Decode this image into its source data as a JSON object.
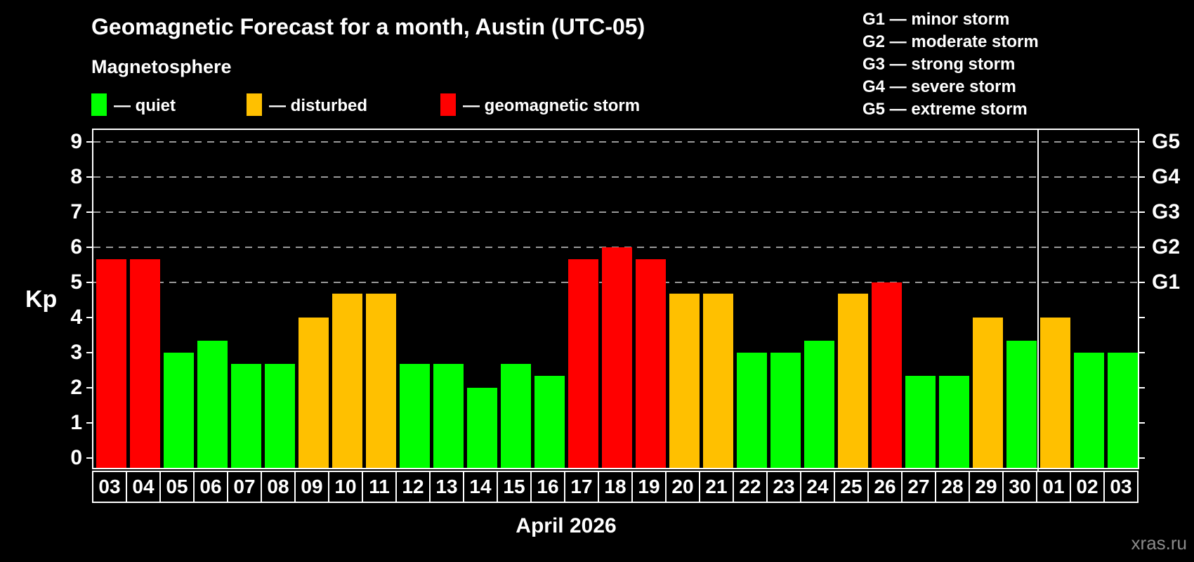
{
  "header": {
    "title": "Geomagnetic Forecast for a month, Austin (UTC-05)",
    "subtitle": "Magnetosphere"
  },
  "legend": {
    "items": [
      {
        "label": "— quiet",
        "status": "quiet",
        "color": "#00FF00",
        "x": 130
      },
      {
        "label": "— disturbed",
        "status": "disturbed",
        "color": "#FFC000",
        "x": 351
      },
      {
        "label": "— geomagnetic storm",
        "status": "storm",
        "color": "#FF0000",
        "x": 627
      }
    ]
  },
  "g_scale_legend": {
    "items": [
      "G1 — minor storm",
      "G2 — moderate storm",
      "G3 — strong storm",
      "G4 — severe storm",
      "G5 — extreme storm"
    ]
  },
  "footer": {
    "caption": "April 2026",
    "watermark": "xras.ru"
  },
  "chart_data": {
    "type": "bar",
    "title": "Geomagnetic Forecast for a month, Austin (UTC-05)",
    "ylabel": "Kp",
    "xlabel": "April 2026",
    "categories": [
      "03",
      "04",
      "05",
      "06",
      "07",
      "08",
      "09",
      "10",
      "11",
      "12",
      "13",
      "14",
      "15",
      "16",
      "17",
      "18",
      "19",
      "20",
      "21",
      "22",
      "23",
      "24",
      "25",
      "26",
      "27",
      "28",
      "29",
      "30",
      "01",
      "02",
      "03"
    ],
    "series": [
      {
        "name": "Kp forecast",
        "values": [
          5.67,
          5.67,
          3.0,
          3.33,
          2.67,
          2.67,
          4.0,
          4.67,
          4.67,
          2.67,
          2.67,
          2.0,
          2.67,
          2.33,
          5.67,
          6.0,
          5.67,
          4.67,
          4.67,
          3.0,
          3.0,
          3.33,
          4.67,
          5.0,
          2.33,
          2.33,
          4.0,
          3.33,
          4.0,
          3.0,
          3.0
        ]
      }
    ],
    "statuses": [
      "storm",
      "storm",
      "quiet",
      "quiet",
      "quiet",
      "quiet",
      "disturbed",
      "disturbed",
      "disturbed",
      "quiet",
      "quiet",
      "quiet",
      "quiet",
      "quiet",
      "storm",
      "storm",
      "storm",
      "disturbed",
      "disturbed",
      "quiet",
      "quiet",
      "quiet",
      "disturbed",
      "storm",
      "quiet",
      "quiet",
      "disturbed",
      "quiet",
      "disturbed",
      "quiet",
      "quiet"
    ],
    "status_colors": {
      "quiet": "#00FF00",
      "disturbed": "#FFC000",
      "storm": "#FF0000"
    },
    "ylim": [
      0,
      9
    ],
    "y_ticks": [
      0,
      1,
      2,
      3,
      4,
      5,
      6,
      7,
      8,
      9
    ],
    "right_axis_labels": [
      {
        "label": "G1",
        "kp": 5
      },
      {
        "label": "G2",
        "kp": 6
      },
      {
        "label": "G3",
        "kp": 7
      },
      {
        "label": "G4",
        "kp": 8
      },
      {
        "label": "G5",
        "kp": 9
      }
    ],
    "gridlines_at_kp": [
      5,
      6,
      7,
      8,
      9
    ],
    "grid_style": "dashed",
    "month_separator_after_index": 27,
    "legend_position": "top-left",
    "colors": {
      "background": "#000000",
      "frame": "#FFFFFF",
      "gridline": "#999999",
      "text": "#FFFFFF",
      "watermark": "#8A8A8A"
    }
  }
}
